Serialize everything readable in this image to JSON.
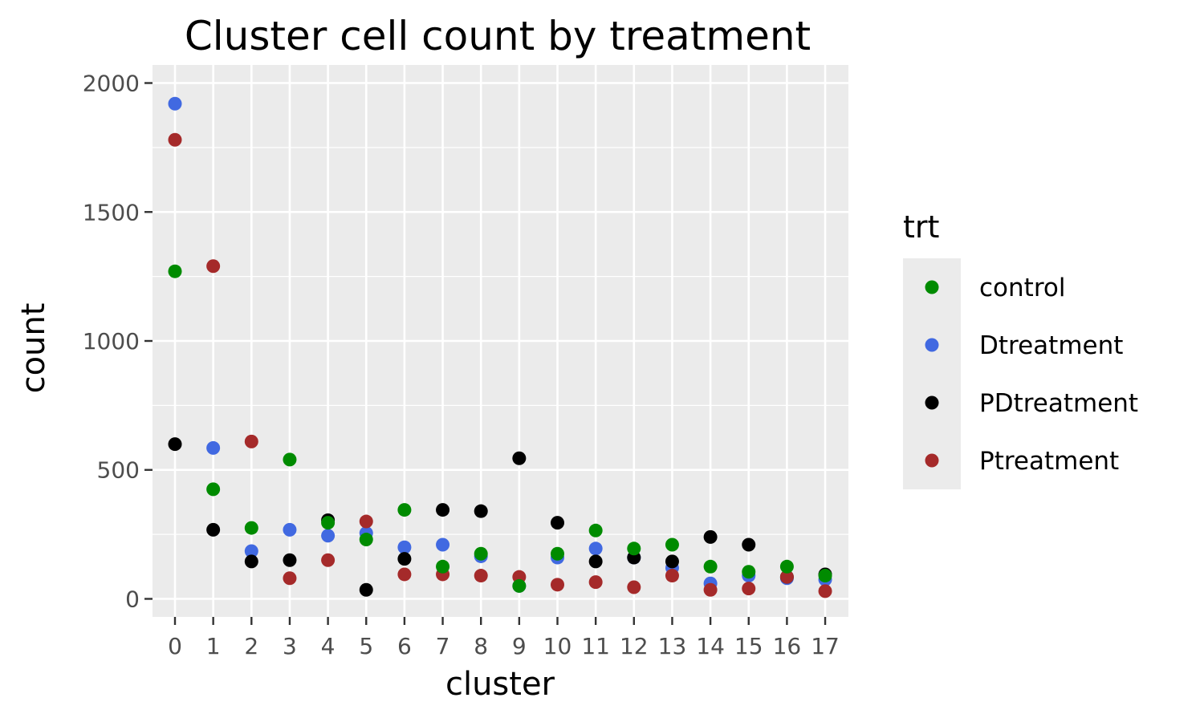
{
  "chart_data": {
    "type": "scatter",
    "title": "Cluster cell count by treatment",
    "xlabel": "cluster",
    "ylabel": "count",
    "categories": [
      "0",
      "1",
      "2",
      "3",
      "4",
      "5",
      "6",
      "7",
      "8",
      "9",
      "10",
      "11",
      "12",
      "13",
      "14",
      "15",
      "16",
      "17"
    ],
    "yticks": [
      0,
      500,
      1000,
      1500,
      2000
    ],
    "ylim": [
      -70,
      2070
    ],
    "grid": true,
    "legend": {
      "title": "trt",
      "position": "right"
    },
    "series": [
      {
        "name": "Dtreatment",
        "color": "#4169E1",
        "values": [
          1920,
          585,
          185,
          268,
          245,
          255,
          200,
          210,
          165,
          50,
          160,
          195,
          160,
          120,
          60,
          90,
          80,
          75
        ]
      },
      {
        "name": "PDtreatment",
        "color": "#000000",
        "values": [
          600,
          268,
          145,
          150,
          305,
          35,
          155,
          345,
          340,
          545,
          295,
          145,
          160,
          145,
          240,
          210,
          85,
          95
        ]
      },
      {
        "name": "Ptreatment",
        "color": "#A52A2A",
        "values": [
          1780,
          1290,
          610,
          80,
          150,
          300,
          95,
          95,
          90,
          85,
          55,
          65,
          45,
          90,
          35,
          40,
          85,
          30
        ]
      },
      {
        "name": "control",
        "color": "#008B00",
        "values": [
          1270,
          425,
          275,
          540,
          295,
          230,
          345,
          125,
          175,
          50,
          175,
          265,
          195,
          210,
          125,
          105,
          125,
          90
        ]
      }
    ],
    "legend_order": [
      "control",
      "Dtreatment",
      "PDtreatment",
      "Ptreatment"
    ]
  }
}
